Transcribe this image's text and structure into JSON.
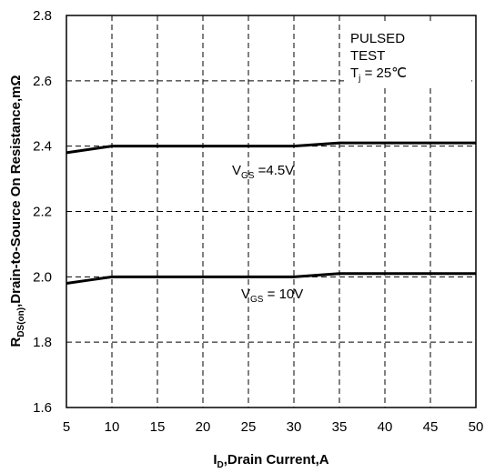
{
  "chart_data": {
    "type": "line",
    "xlabel": {
      "symbol": "I",
      "subscript": "D",
      "text": ",Drain Current,A"
    },
    "ylabel": {
      "symbol": "R",
      "subscript": "DS(on)",
      "text": ",Drain-to-Source On Resistance,mΩ"
    },
    "annotation": {
      "line1": "PULSED",
      "line2": "TEST",
      "symbol": "T",
      "subscript": "j",
      "text": " = 25℃"
    },
    "xlim": [
      5,
      50
    ],
    "xticks": [
      5,
      10,
      15,
      20,
      25,
      30,
      35,
      40,
      45,
      50
    ],
    "ylim": [
      1.6,
      2.8
    ],
    "yticks": [
      1.6,
      1.8,
      {
        "value": 2.0,
        "label": "2.0"
      },
      2.2,
      2.4,
      2.6,
      2.8
    ],
    "grid": true,
    "series": [
      {
        "label": {
          "symbol": "V",
          "subscript": "GS",
          "text": " =4.5V"
        },
        "color": "#000000",
        "x": [
          5,
          7.5,
          10,
          15,
          20,
          25,
          30,
          35,
          40,
          45,
          50
        ],
        "values": [
          2.38,
          2.39,
          2.4,
          2.4,
          2.4,
          2.4,
          2.4,
          2.41,
          2.41,
          2.41,
          2.41
        ]
      },
      {
        "label": {
          "symbol": "V",
          "subscript": "GS",
          "text": " = 10V"
        },
        "color": "#000000",
        "x": [
          5,
          7.5,
          10,
          15,
          20,
          25,
          30,
          35,
          40,
          45,
          50
        ],
        "values": [
          1.98,
          1.99,
          2.0,
          2.0,
          2.0,
          2.0,
          2.0,
          2.01,
          2.01,
          2.01,
          2.01
        ]
      }
    ]
  }
}
